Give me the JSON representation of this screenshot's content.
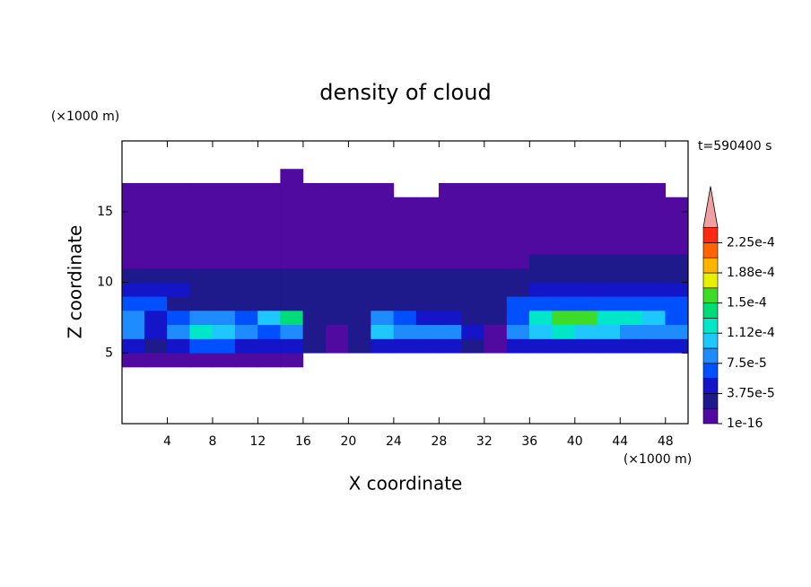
{
  "chart_data": {
    "type": "contour",
    "title": "density of cloud",
    "x_label": "X coordinate",
    "y_label": "Z coordinate",
    "x_unit": "(×1000 m)",
    "y_unit": "(×1000 m)",
    "time_label": "t=590400 s",
    "xlim": [
      0,
      50
    ],
    "ylim": [
      0,
      20
    ],
    "xticks": [
      4,
      8,
      12,
      16,
      20,
      24,
      28,
      32,
      36,
      40,
      44,
      48
    ],
    "yticks": [
      5,
      10,
      15
    ],
    "x": [
      1,
      3,
      5,
      7,
      9,
      11,
      13,
      15,
      17,
      19,
      21,
      23,
      25,
      27,
      29,
      31,
      33,
      35,
      37,
      39,
      41,
      43,
      45,
      47,
      49
    ],
    "y": [
      4.5,
      5.5,
      6.5,
      7.5,
      8.5,
      9.5,
      10.5,
      11.5,
      12.5,
      13.5,
      14.5,
      15.5,
      16.5,
      17.5
    ],
    "values": [
      [
        5e-06,
        5e-06,
        5e-06,
        5e-06,
        5e-06,
        5e-06,
        5e-06,
        5e-06,
        null,
        null,
        null,
        null,
        null,
        null,
        null,
        null,
        null,
        null,
        null,
        null,
        null,
        null,
        null,
        null,
        null
      ],
      [
        4e-05,
        3e-05,
        5e-05,
        6e-05,
        6e-05,
        5e-05,
        4e-05,
        4e-05,
        2e-05,
        1e-05,
        2e-05,
        4e-05,
        5e-05,
        5e-05,
        5e-05,
        3e-05,
        1e-05,
        5e-05,
        5e-05,
        5e-05,
        5e-05,
        5e-05,
        5e-05,
        5e-05,
        5e-05
      ],
      [
        9e-05,
        5e-05,
        9e-05,
        0.000115,
        0.00011,
        9e-05,
        7e-05,
        8e-05,
        3e-05,
        1.5e-05,
        3e-05,
        0.0001,
        8e-05,
        9e-05,
        8e-05,
        5e-05,
        1.5e-05,
        8e-05,
        0.00011,
        0.000115,
        0.00011,
        0.0001,
        9e-05,
        9e-05,
        8e-05
      ],
      [
        8e-05,
        4e-05,
        6e-05,
        8e-05,
        8e-05,
        6e-05,
        0.0001,
        0.00014,
        3e-05,
        2e-05,
        2e-05,
        9e-05,
        6e-05,
        5e-05,
        4e-05,
        3e-05,
        2e-05,
        6e-05,
        0.00012,
        0.000155,
        0.00016,
        0.00012,
        0.000115,
        0.0001,
        7e-05
      ],
      [
        6e-05,
        6e-05,
        3e-05,
        3e-05,
        3e-05,
        3e-05,
        3e-05,
        3e-05,
        3e-05,
        3e-05,
        2.5e-05,
        2.5e-05,
        2.5e-05,
        2.5e-05,
        2.5e-05,
        2.5e-05,
        2.5e-05,
        6e-05,
        6e-05,
        6e-05,
        6e-05,
        6e-05,
        6e-05,
        6e-05,
        6e-05
      ],
      [
        4e-05,
        4e-05,
        4e-05,
        2.5e-05,
        2.5e-05,
        2.5e-05,
        2.5e-05,
        2.5e-05,
        2.5e-05,
        2.5e-05,
        2.5e-05,
        2.5e-05,
        2.5e-05,
        2.5e-05,
        2.5e-05,
        2.5e-05,
        2.5e-05,
        2.5e-05,
        4e-05,
        4e-05,
        4e-05,
        4e-05,
        4e-05,
        4e-05,
        4e-05
      ],
      [
        2.2e-05,
        2.2e-05,
        2.2e-05,
        2.2e-05,
        2.2e-05,
        2.2e-05,
        2.2e-05,
        2.2e-05,
        2.2e-05,
        2.2e-05,
        2.2e-05,
        2.2e-05,
        2.2e-05,
        2.2e-05,
        2.2e-05,
        2.2e-05,
        2.2e-05,
        2.2e-05,
        2.2e-05,
        2.2e-05,
        2.2e-05,
        2.2e-05,
        2.2e-05,
        2.2e-05,
        2.2e-05
      ],
      [
        1.2e-05,
        1.2e-05,
        1.2e-05,
        1.2e-05,
        1.2e-05,
        1.2e-05,
        1.2e-05,
        1.2e-05,
        1.2e-05,
        1.2e-05,
        1.2e-05,
        1.2e-05,
        1.2e-05,
        1.2e-05,
        1.2e-05,
        1.2e-05,
        1.2e-05,
        1.2e-05,
        2e-05,
        2e-05,
        2e-05,
        2e-05,
        2e-05,
        2e-05,
        2e-05
      ],
      [
        1e-05,
        1e-05,
        1e-05,
        1e-05,
        1e-05,
        1e-05,
        1e-05,
        1e-05,
        1e-05,
        1e-05,
        1e-05,
        1e-05,
        1e-05,
        1e-05,
        1e-05,
        1e-05,
        1e-05,
        1e-05,
        1e-05,
        1e-05,
        1e-05,
        1e-05,
        1e-05,
        1e-05,
        1e-05
      ],
      [
        8e-06,
        8e-06,
        8e-06,
        8e-06,
        8e-06,
        8e-06,
        8e-06,
        8e-06,
        8e-06,
        8e-06,
        8e-06,
        8e-06,
        8e-06,
        8e-06,
        8e-06,
        8e-06,
        8e-06,
        8e-06,
        8e-06,
        8e-06,
        8e-06,
        8e-06,
        8e-06,
        8e-06,
        8e-06
      ],
      [
        8e-06,
        8e-06,
        8e-06,
        8e-06,
        8e-06,
        8e-06,
        8e-06,
        8e-06,
        8e-06,
        8e-06,
        8e-06,
        8e-06,
        8e-06,
        8e-06,
        8e-06,
        8e-06,
        8e-06,
        8e-06,
        8e-06,
        8e-06,
        8e-06,
        8e-06,
        8e-06,
        8e-06,
        8e-06
      ],
      [
        8e-06,
        8e-06,
        8e-06,
        8e-06,
        8e-06,
        8e-06,
        8e-06,
        8e-06,
        8e-06,
        8e-06,
        8e-06,
        8e-06,
        8e-06,
        8e-06,
        8e-06,
        8e-06,
        8e-06,
        8e-06,
        8e-06,
        8e-06,
        8e-06,
        8e-06,
        8e-06,
        8e-06,
        8e-06
      ],
      [
        8e-06,
        8e-06,
        8e-06,
        8e-06,
        8e-06,
        8e-06,
        8e-06,
        8e-06,
        8e-06,
        8e-06,
        8e-06,
        8e-06,
        null,
        null,
        8e-06,
        8e-06,
        8e-06,
        8e-06,
        8e-06,
        8e-06,
        8e-06,
        8e-06,
        8e-06,
        8e-06,
        null
      ],
      [
        null,
        null,
        null,
        null,
        null,
        null,
        null,
        8e-06,
        null,
        null,
        null,
        null,
        null,
        null,
        null,
        null,
        null,
        null,
        null,
        null,
        null,
        null,
        null,
        null,
        null
      ]
    ],
    "levels": [
      1e-16,
      1.875e-05,
      3.75e-05,
      5.625e-05,
      7.5e-05,
      9.375e-05,
      0.0001125,
      0.00013125,
      0.00015,
      0.00016875,
      0.0001875,
      0.00020625,
      0.000225,
      0.00024375
    ],
    "colors": [
      "#500aa0",
      "#1e1a8c",
      "#1414c8",
      "#0050ff",
      "#1e8cff",
      "#1ec8ff",
      "#00e6c8",
      "#00dc78",
      "#3cdc28",
      "#e6f000",
      "#ffb400",
      "#ff6400",
      "#ff2810",
      "#f0a0a0"
    ],
    "colorbar_ticks": [
      1e-16,
      {
        "value": 3.75e-05,
        "label": "3.75e-5"
      },
      {
        "value": 7.5e-05,
        "label": "7.5e-5"
      },
      {
        "value": 0.0001125,
        "label": "1.12e-4"
      },
      {
        "value": 0.00015,
        "label": "1.5e-4"
      },
      {
        "value": 0.0001875,
        "label": "1.88e-4"
      },
      {
        "value": 0.000225,
        "label": "2.25e-4"
      }
    ]
  }
}
